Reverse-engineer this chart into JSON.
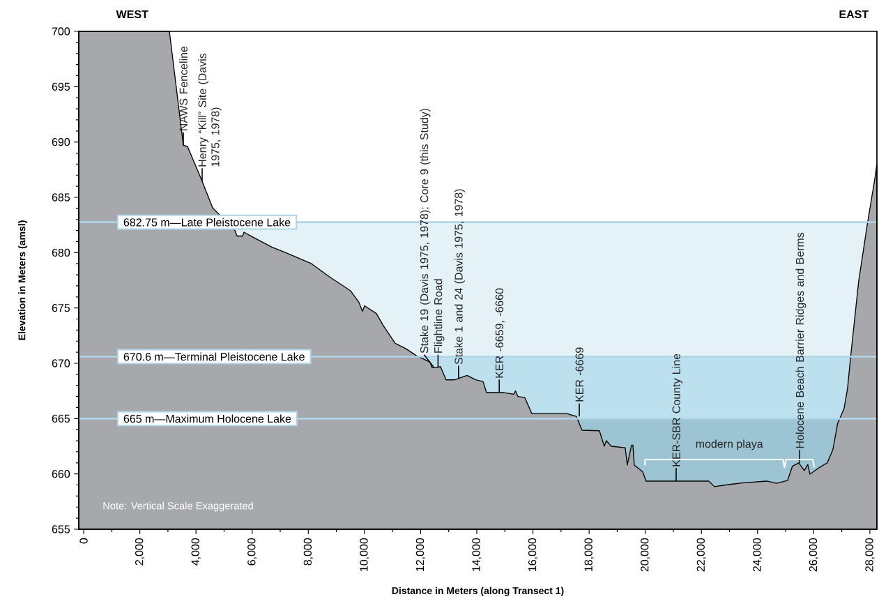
{
  "chart_data": {
    "type": "area",
    "xlabel": "Distance in Meters (along Transect 1)",
    "ylabel": "Elevation in Meters (amsl)",
    "xlim": [
      -175,
      28250
    ],
    "ylim": [
      655,
      700
    ],
    "xticks": [
      0,
      {
        "value": 2000,
        "label": "2,000"
      },
      {
        "value": 4000,
        "label": "4,000"
      },
      {
        "value": 6000,
        "label": "6,000"
      },
      {
        "value": 8000,
        "label": "8,000"
      },
      {
        "value": 10000,
        "label": "10,000"
      },
      {
        "value": 12000,
        "label": "12,000"
      },
      {
        "value": 14000,
        "label": "14,000"
      },
      {
        "value": 16000,
        "label": "16,000"
      },
      {
        "value": 18000,
        "label": "18,000"
      },
      {
        "value": 20000,
        "label": "20,000"
      },
      {
        "value": 22000,
        "label": "22,000"
      },
      {
        "value": 24000,
        "label": "24,000"
      },
      {
        "value": 26000,
        "label": "26,000"
      },
      {
        "value": 28000,
        "label": "28,000"
      }
    ],
    "yticks": [
      655,
      660,
      665,
      670,
      675,
      680,
      685,
      690,
      695,
      700
    ],
    "series": [
      {
        "color": "#a7a8ab",
        "x": [
          -175,
          3053,
          3549,
          3698,
          4219,
          4592,
          5386,
          5460,
          5659,
          5709,
          6031,
          6701,
          7198,
          8116,
          8762,
          9506,
          9804,
          9928,
          10003,
          10424,
          10673,
          11094,
          11492,
          11839,
          12336,
          12410,
          12534,
          12708,
          12906,
          13204,
          13651,
          13974,
          14222,
          14346,
          14966,
          15314,
          15380,
          15463,
          15711,
          15960,
          17200,
          17548,
          17747,
          18367,
          18541,
          18615,
          18789,
          19285,
          19360,
          19510,
          19560,
          19608,
          19906,
          20030,
          22264,
          22462,
          23008,
          23504,
          24324,
          24672,
          25068,
          25242,
          25465,
          25664,
          25788,
          25862,
          26185,
          26483,
          26682,
          26855,
          27079,
          27203,
          27327,
          27600,
          27923,
          28171,
          28250
        ],
        "values": [
          700,
          700,
          689.7,
          689.6,
          686.45,
          684.05,
          682.0,
          681.5,
          681.5,
          681.85,
          681.4,
          680.5,
          680.0,
          679.0,
          677.8,
          676.55,
          675.5,
          674.7,
          675.2,
          674.5,
          673.4,
          671.8,
          671.3,
          670.7,
          670.1,
          669.6,
          669.6,
          669.7,
          668.5,
          668.5,
          668.9,
          668.5,
          668.35,
          667.35,
          667.35,
          667.2,
          667.5,
          667.0,
          666.9,
          665.45,
          665.45,
          665.2,
          663.95,
          663.9,
          662.5,
          663.0,
          662.5,
          662.37,
          660.8,
          662.6,
          662.6,
          660.8,
          660.2,
          659.35,
          659.35,
          658.85,
          659.05,
          659.2,
          659.35,
          659.15,
          659.4,
          660.7,
          661.0,
          660.3,
          660.85,
          659.98,
          660.55,
          661.0,
          662.2,
          664.6,
          665.9,
          667.7,
          670.9,
          677.4,
          682.8,
          686.6,
          688.0
        ]
      }
    ],
    "bands": [
      {
        "axis": "y",
        "from": 670.6,
        "to": 682.75,
        "color": "#e4f1f7"
      },
      {
        "axis": "y",
        "from": 665,
        "to": 670.6,
        "color": "#bde0ee"
      },
      {
        "axis": "y",
        "from": 655,
        "to": 665,
        "color": "#9dc4d2"
      }
    ],
    "ref_lines": [
      {
        "axis": "y",
        "value": 682.75,
        "label": "682.75 m—Late Pleistocene Lake",
        "color": "#aed6e8"
      },
      {
        "axis": "y",
        "value": 670.6,
        "label": "670.6 m—Terminal Pleistocene Lake",
        "color": "#aed6e8"
      },
      {
        "axis": "y",
        "value": 665,
        "label": "665 m—Maximum Holocene Lake",
        "color": "#aed6e8"
      }
    ],
    "annotations": [
      "WEST",
      "EAST",
      "Note: Vertical Scale Exaggerated",
      {
        "text": "NAWS Fenceline",
        "x": 3549,
        "y": 689.7
      },
      {
        "text": "Henry “Kill” Site (Davis 1975, 1978)",
        "x": 4219,
        "y": 686.45
      },
      {
        "text": "Stake 19 (Davis 1975, 1978); Core 9 (this Study)",
        "x": 12480,
        "y": 669.6
      },
      {
        "text": "Flightline Road",
        "x": 12620,
        "y": 669.6
      },
      {
        "text": "Stake 1 and 24 (Davis 1975, 1978)",
        "x": 13350,
        "y": 668.6
      },
      {
        "text": "KER -6659, -6660",
        "x": 14800,
        "y": 667.35
      },
      {
        "text": "KER -6669",
        "x": 17650,
        "y": 665.2
      },
      {
        "text": "KER-SBR County Line",
        "x": 21100,
        "y": 659.35
      },
      {
        "text": "Holocene Beach Barrier Ridges and Berms",
        "x": 25500,
        "y": 661.0
      },
      "modern playa"
    ]
  }
}
